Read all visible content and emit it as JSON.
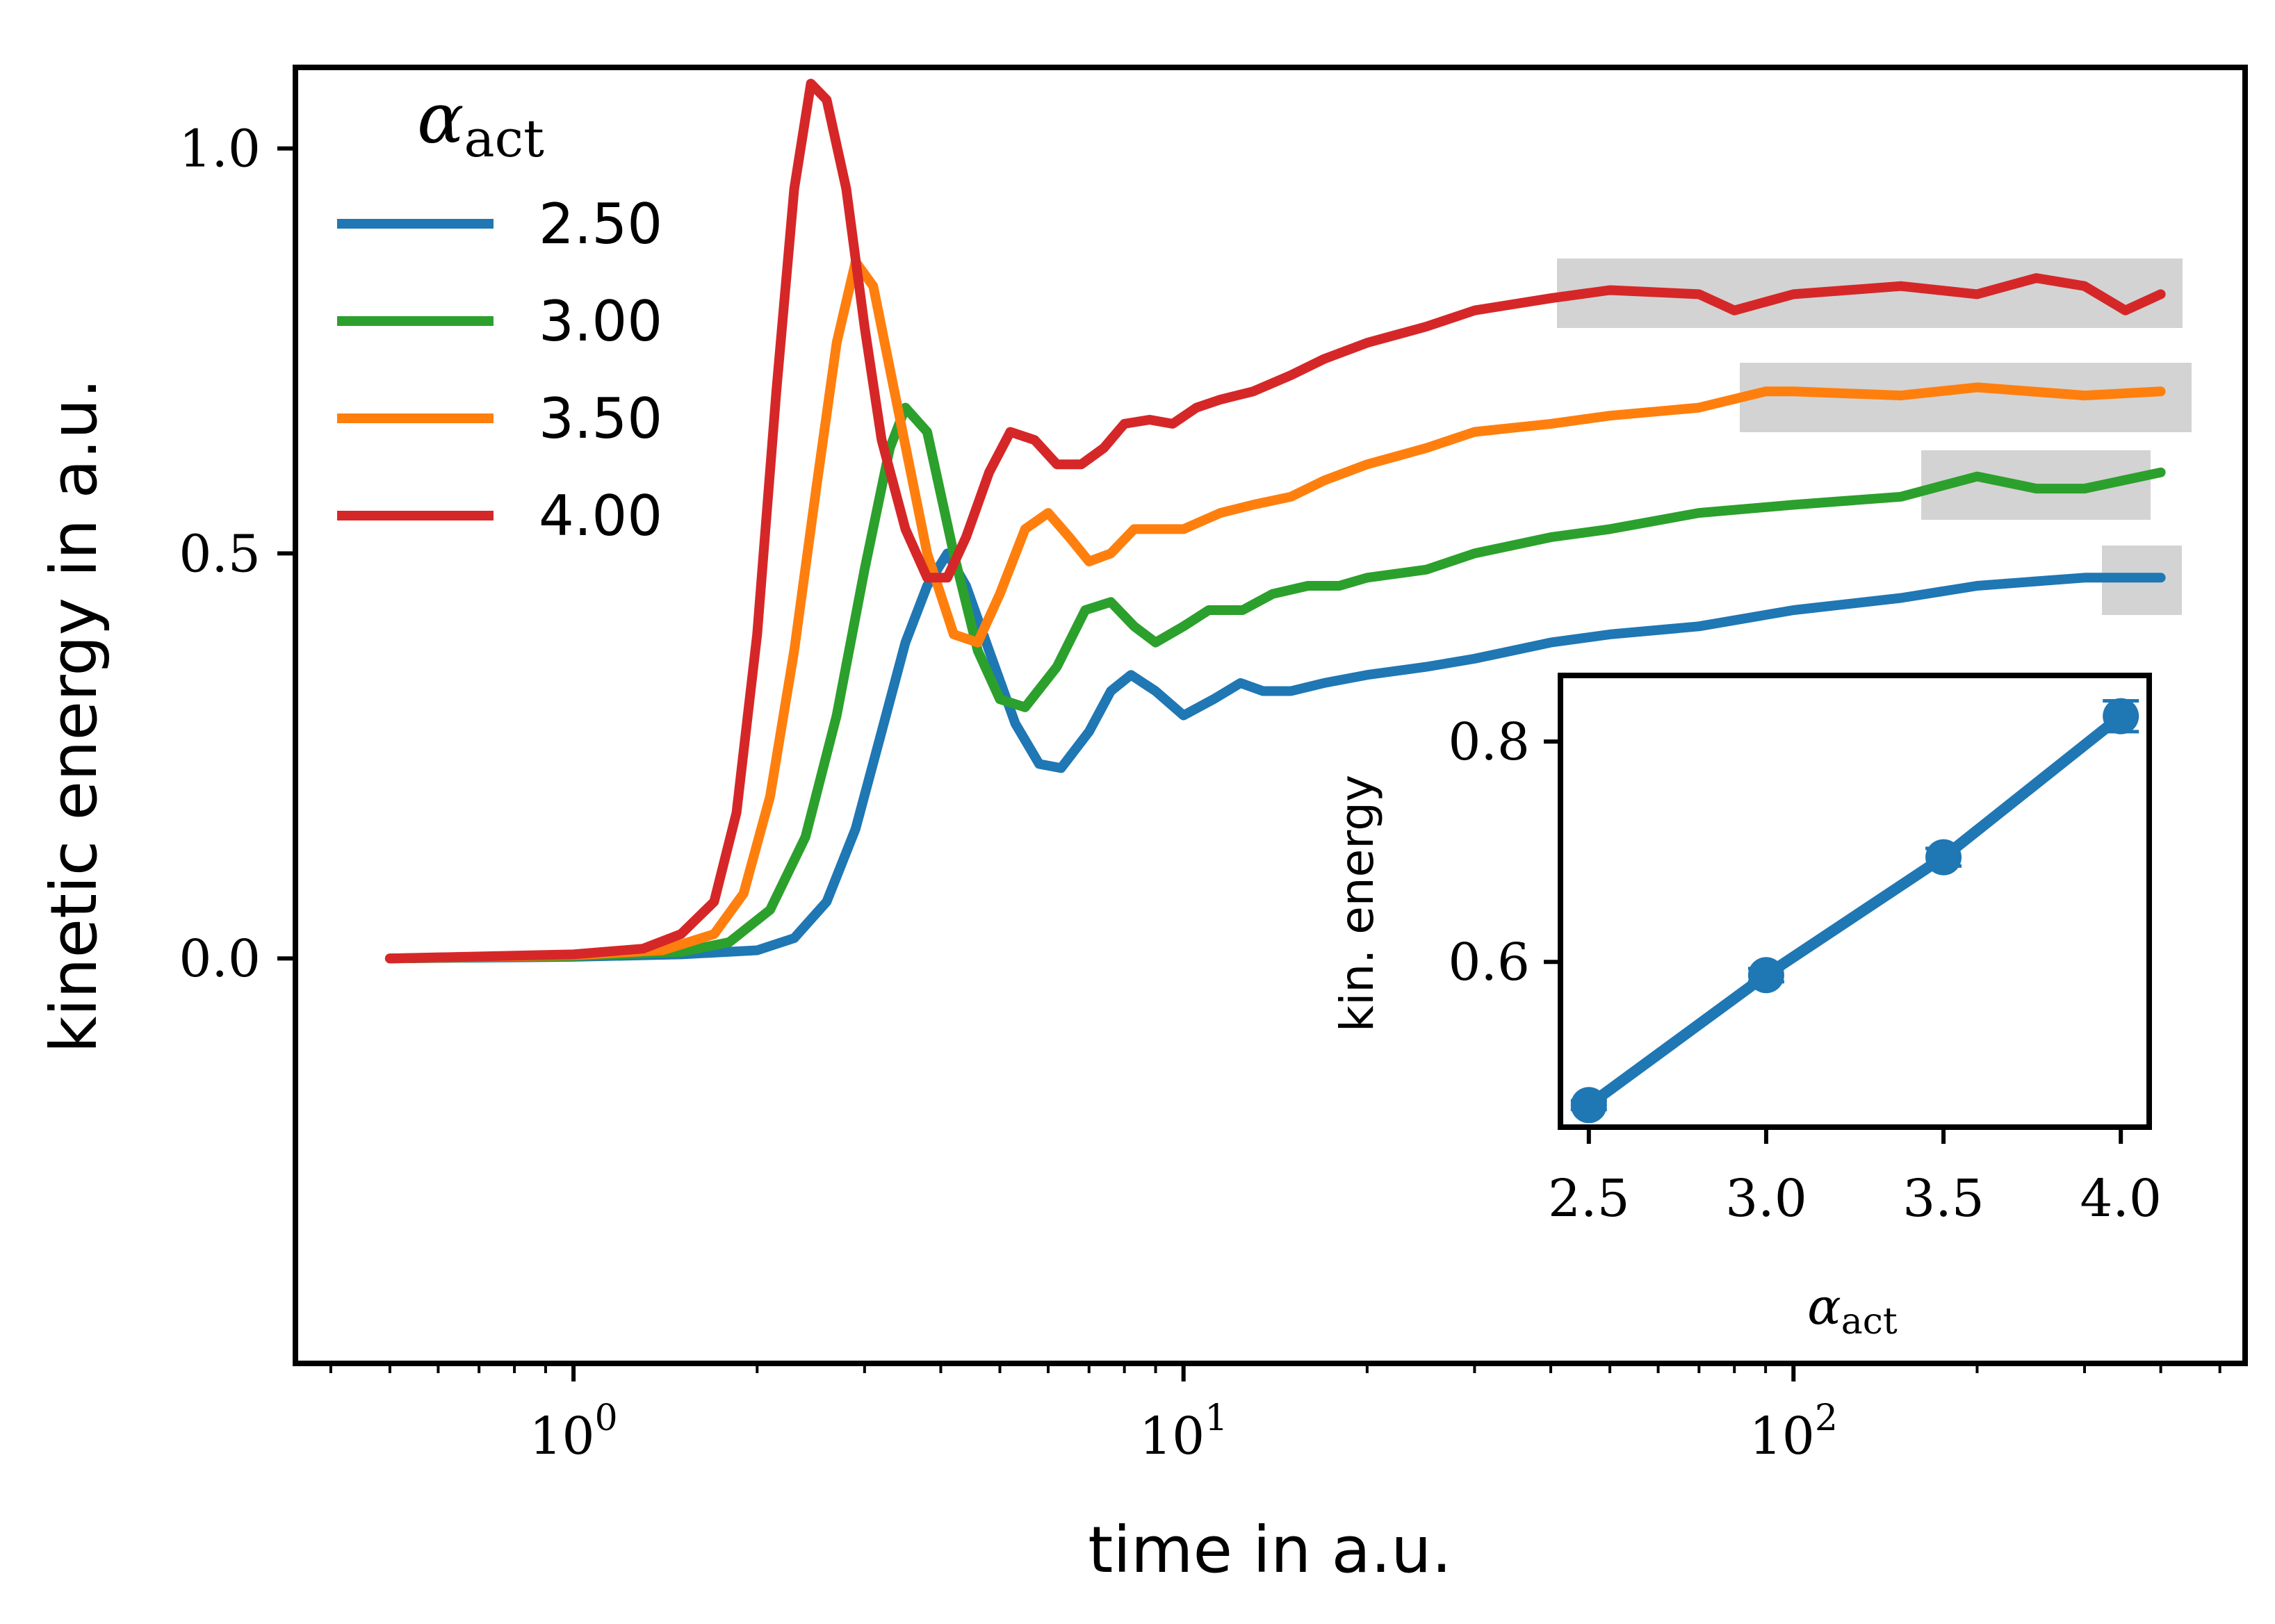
{
  "chart_data": [
    {
      "type": "line",
      "xlabel": "time in a.u.",
      "ylabel": "kinetic energy in a.u.",
      "xscale": "log",
      "xlim": [
        0.35,
        550
      ],
      "ylim": [
        -0.5,
        1.1
      ],
      "x_ticks": [
        1,
        10,
        100
      ],
      "x_tick_base": "10",
      "x_tick_exponents": [
        "0",
        "1",
        "2"
      ],
      "y_ticks": [
        0.0,
        0.5,
        1.0
      ],
      "y_tick_labels": [
        "0.0",
        "0.5",
        "1.0"
      ],
      "grid": false,
      "legend": {
        "title_symbol": "α",
        "title_subscript": "act",
        "placement": "top-left"
      },
      "series": [
        {
          "name": "2.50",
          "color": "#1f77b4",
          "x": [
            0.5,
            1.0,
            1.5,
            2.0,
            2.3,
            2.6,
            2.9,
            3.2,
            3.5,
            3.8,
            4.1,
            4.4,
            4.8,
            5.3,
            5.8,
            6.3,
            7.0,
            7.6,
            8.2,
            9.0,
            10.0,
            11.2,
            12.4,
            13.5,
            15,
            17,
            20,
            25,
            30,
            40,
            50,
            70,
            100,
            150,
            200,
            300,
            400
          ],
          "y": [
            0.0,
            0.002,
            0.005,
            0.01,
            0.025,
            0.07,
            0.16,
            0.28,
            0.39,
            0.46,
            0.5,
            0.46,
            0.38,
            0.29,
            0.24,
            0.235,
            0.28,
            0.33,
            0.35,
            0.33,
            0.3,
            0.32,
            0.34,
            0.33,
            0.33,
            0.34,
            0.35,
            0.36,
            0.37,
            0.39,
            0.4,
            0.41,
            0.43,
            0.445,
            0.46,
            0.47,
            0.47
          ]
        },
        {
          "name": "3.00",
          "color": "#2ca02c",
          "x": [
            0.5,
            1.0,
            1.5,
            1.8,
            2.1,
            2.4,
            2.7,
            3.0,
            3.3,
            3.5,
            3.8,
            4.2,
            4.6,
            5.0,
            5.5,
            6.2,
            6.9,
            7.6,
            8.3,
            9.0,
            10.0,
            11.0,
            12.5,
            14,
            16,
            18,
            20,
            25,
            30,
            40,
            50,
            70,
            100,
            150,
            200,
            250,
            300,
            400
          ],
          "y": [
            0.0,
            0.003,
            0.008,
            0.02,
            0.06,
            0.15,
            0.3,
            0.48,
            0.63,
            0.68,
            0.65,
            0.5,
            0.38,
            0.32,
            0.31,
            0.36,
            0.43,
            0.44,
            0.41,
            0.39,
            0.41,
            0.43,
            0.43,
            0.45,
            0.46,
            0.46,
            0.47,
            0.48,
            0.5,
            0.52,
            0.53,
            0.55,
            0.56,
            0.57,
            0.595,
            0.58,
            0.58,
            0.6
          ]
        },
        {
          "name": "3.50",
          "color": "#ff7f0e",
          "x": [
            0.5,
            1.0,
            1.4,
            1.7,
            1.9,
            2.1,
            2.3,
            2.5,
            2.7,
            2.9,
            3.1,
            3.4,
            3.8,
            4.2,
            4.6,
            5.0,
            5.5,
            6.0,
            6.5,
            7.0,
            7.6,
            8.3,
            9.0,
            10.0,
            11.5,
            13,
            15,
            17,
            20,
            25,
            30,
            40,
            50,
            70,
            90,
            100,
            150,
            200,
            300,
            400
          ],
          "y": [
            0.0,
            0.004,
            0.01,
            0.03,
            0.08,
            0.2,
            0.38,
            0.58,
            0.76,
            0.86,
            0.83,
            0.68,
            0.5,
            0.4,
            0.39,
            0.45,
            0.53,
            0.55,
            0.52,
            0.49,
            0.5,
            0.53,
            0.53,
            0.53,
            0.55,
            0.56,
            0.57,
            0.59,
            0.61,
            0.63,
            0.65,
            0.66,
            0.67,
            0.68,
            0.7,
            0.7,
            0.695,
            0.705,
            0.695,
            0.7
          ]
        },
        {
          "name": "4.00",
          "color": "#d62728",
          "x": [
            0.5,
            1.0,
            1.3,
            1.5,
            1.7,
            1.85,
            2.0,
            2.15,
            2.3,
            2.45,
            2.6,
            2.8,
            3.0,
            3.2,
            3.5,
            3.8,
            4.1,
            4.4,
            4.8,
            5.2,
            5.7,
            6.2,
            6.8,
            7.4,
            8.0,
            8.8,
            9.6,
            10.5,
            11.5,
            13,
            15,
            17,
            20,
            25,
            30,
            40,
            50,
            70,
            80,
            100,
            150,
            200,
            250,
            300,
            350,
            400
          ],
          "y": [
            0.0,
            0.005,
            0.012,
            0.03,
            0.07,
            0.18,
            0.4,
            0.7,
            0.95,
            1.08,
            1.06,
            0.95,
            0.78,
            0.64,
            0.53,
            0.47,
            0.47,
            0.52,
            0.6,
            0.65,
            0.64,
            0.61,
            0.61,
            0.63,
            0.66,
            0.665,
            0.66,
            0.68,
            0.69,
            0.7,
            0.72,
            0.74,
            0.76,
            0.78,
            0.8,
            0.815,
            0.825,
            0.82,
            0.8,
            0.82,
            0.83,
            0.82,
            0.84,
            0.83,
            0.8,
            0.82
          ]
        }
      ]
    },
    {
      "type": "line",
      "inset": true,
      "xlabel_symbol": "α",
      "xlabel_subscript": "act",
      "ylabel": "kin. energy",
      "xlim": [
        2.42,
        4.08
      ],
      "ylim": [
        0.45,
        0.86
      ],
      "x_ticks": [
        2.5,
        3.0,
        3.5,
        4.0
      ],
      "x_tick_labels": [
        "2.5",
        "3.0",
        "3.5",
        "4.0"
      ],
      "y_ticks": [
        0.6,
        0.8
      ],
      "y_tick_labels": [
        "0.6",
        "0.8"
      ],
      "series": [
        {
          "color": "#1f77b4",
          "x": [
            2.5,
            3.0,
            3.5,
            4.0
          ],
          "y": [
            0.47,
            0.588,
            0.695,
            0.823
          ],
          "yerr": [
            0.004,
            0.006,
            0.008,
            0.014
          ]
        }
      ]
    }
  ]
}
